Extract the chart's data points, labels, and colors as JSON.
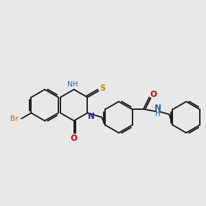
{
  "background_color": "#e8e8e8",
  "bond_color": "#1a1a1a",
  "atom_colors": {
    "N": "#2020b0",
    "O": "#cc0000",
    "S": "#b8900a",
    "Br": "#b86010",
    "NH_label": "#2060a0"
  },
  "figsize": [
    3.0,
    3.0
  ],
  "dpi": 100,
  "lw": 1.4,
  "r_hex": 22,
  "font_size": 7.5
}
